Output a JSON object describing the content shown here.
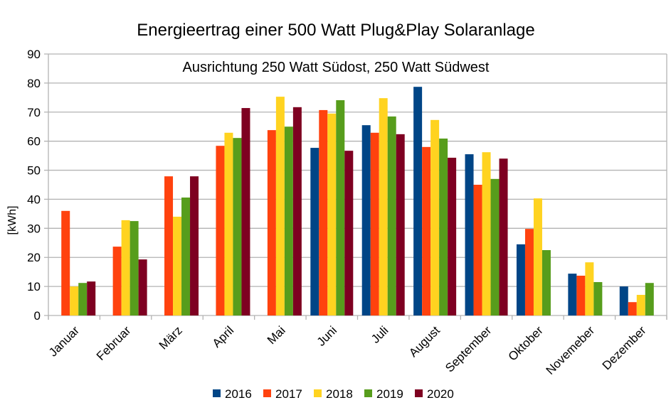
{
  "chart_data": {
    "type": "bar",
    "title": "Energieertrag einer 500 Watt Plug&Play Solaranlage",
    "subtitle": "Ausrichtung 250 Watt Südost, 250 Watt Südwest",
    "xlabel": "",
    "ylabel": "[kWh]",
    "ylim": [
      0,
      90
    ],
    "yticks": [
      0,
      10,
      20,
      30,
      40,
      50,
      60,
      70,
      80,
      90
    ],
    "grid": true,
    "legend_position": "bottom",
    "categories": [
      "Januar",
      "Februar",
      "März",
      "April",
      "Mai",
      "Juni",
      "Juli",
      "August",
      "September",
      "Oktober",
      "Novemeber",
      "Dezember"
    ],
    "series": [
      {
        "name": "2016",
        "color": "#004586",
        "values": [
          null,
          null,
          null,
          null,
          null,
          57.7,
          65.5,
          78.7,
          55.5,
          24.5,
          14.4,
          10.0
        ]
      },
      {
        "name": "2017",
        "color": "#ff420e",
        "values": [
          36.0,
          23.7,
          47.9,
          58.4,
          63.8,
          70.7,
          62.9,
          58.0,
          45.0,
          29.8,
          13.7,
          4.6
        ]
      },
      {
        "name": "2018",
        "color": "#ffd320",
        "values": [
          10.0,
          32.8,
          34.0,
          62.9,
          75.3,
          69.5,
          74.8,
          67.3,
          56.2,
          40.3,
          18.3,
          7.1
        ]
      },
      {
        "name": "2019",
        "color": "#579d1c",
        "values": [
          11.2,
          32.5,
          40.6,
          61.1,
          65.0,
          74.1,
          68.5,
          60.9,
          47.0,
          22.5,
          11.5,
          11.2
        ]
      },
      {
        "name": "2020",
        "color": "#7e0021",
        "values": [
          11.7,
          19.3,
          47.9,
          71.4,
          71.7,
          56.7,
          62.4,
          54.3,
          54.0,
          null,
          null,
          null
        ]
      }
    ]
  }
}
